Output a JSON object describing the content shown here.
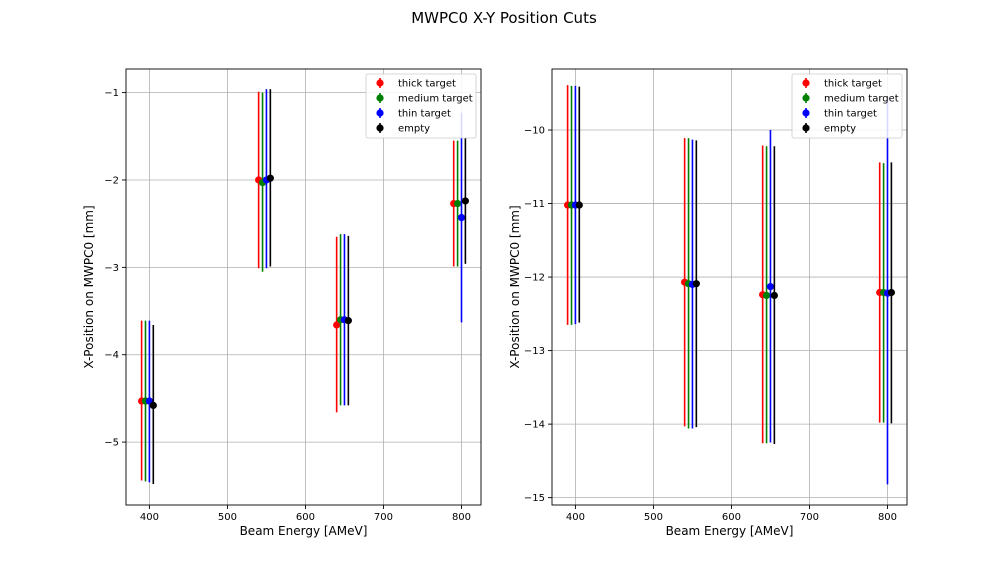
{
  "title": "MWPC0 X-Y Position Cuts",
  "legend_entries": [
    {
      "name": "thick target",
      "color": "#ff0000"
    },
    {
      "name": "medium target",
      "color": "#008000"
    },
    {
      "name": "thin target",
      "color": "#0000ff"
    },
    {
      "name": "empty",
      "color": "#000000"
    }
  ],
  "chart_data": [
    {
      "type": "scatter",
      "errorbars": true,
      "title": "",
      "xlabel": "Beam Energy [AMeV]",
      "ylabel": "X-Position on MWPC0 [mm]",
      "xlim": [
        370,
        825
      ],
      "ylim": [
        -5.72,
        -0.73
      ],
      "xticks": [
        400,
        500,
        600,
        700,
        800
      ],
      "yticks": [
        -5,
        -4,
        -3,
        -2,
        -1
      ],
      "ytick_labels": [
        "−5",
        "−4",
        "−3",
        "−2",
        "−1"
      ],
      "grid": true,
      "legend_position": "top-right",
      "series": [
        {
          "name": "thick target",
          "color": "#ff0000",
          "points": [
            {
              "x": 390,
              "y": -4.53,
              "lo": -5.44,
              "hi": -3.61
            },
            {
              "x": 540,
              "y": -2.0,
              "lo": -3.01,
              "hi": -0.99
            },
            {
              "x": 640,
              "y": -3.66,
              "lo": -4.66,
              "hi": -2.65
            },
            {
              "x": 790,
              "y": -2.27,
              "lo": -2.99,
              "hi": -1.55
            }
          ]
        },
        {
          "name": "medium target",
          "color": "#008000",
          "points": [
            {
              "x": 395,
              "y": -4.53,
              "lo": -5.45,
              "hi": -3.61
            },
            {
              "x": 545,
              "y": -2.03,
              "lo": -3.05,
              "hi": -1.0
            },
            {
              "x": 645,
              "y": -3.6,
              "lo": -4.58,
              "hi": -2.62
            },
            {
              "x": 795,
              "y": -2.27,
              "lo": -2.99,
              "hi": -1.55
            }
          ]
        },
        {
          "name": "thin target",
          "color": "#0000ff",
          "points": [
            {
              "x": 400,
              "y": -4.53,
              "lo": -5.46,
              "hi": -3.61
            },
            {
              "x": 550,
              "y": -2.0,
              "lo": -3.01,
              "hi": -0.96
            },
            {
              "x": 650,
              "y": -3.6,
              "lo": -4.58,
              "hi": -2.62
            },
            {
              "x": 800,
              "y": -2.43,
              "lo": -3.63,
              "hi": -1.23
            }
          ]
        },
        {
          "name": "empty",
          "color": "#000000",
          "points": [
            {
              "x": 405,
              "y": -4.58,
              "lo": -5.48,
              "hi": -3.66
            },
            {
              "x": 555,
              "y": -1.98,
              "lo": -2.99,
              "hi": -0.96
            },
            {
              "x": 655,
              "y": -3.61,
              "lo": -4.58,
              "hi": -2.64
            },
            {
              "x": 805,
              "y": -2.24,
              "lo": -2.96,
              "hi": -1.52
            }
          ]
        }
      ]
    },
    {
      "type": "scatter",
      "errorbars": true,
      "title": "",
      "xlabel": "Beam Energy [AMeV]",
      "ylabel": "X-Position on MWPC0 [mm]",
      "xlim": [
        370,
        825
      ],
      "ylim": [
        -15.1,
        -9.17
      ],
      "xticks": [
        400,
        500,
        600,
        700,
        800
      ],
      "yticks": [
        -15,
        -14,
        -13,
        -12,
        -11,
        -10
      ],
      "ytick_labels": [
        "−15",
        "−14",
        "−13",
        "−12",
        "−11",
        "−10"
      ],
      "grid": true,
      "legend_position": "top-right",
      "series": [
        {
          "name": "thick target",
          "color": "#ff0000",
          "points": [
            {
              "x": 390,
              "y": -11.02,
              "lo": -12.65,
              "hi": -9.39
            },
            {
              "x": 540,
              "y": -12.07,
              "lo": -14.03,
              "hi": -10.11
            },
            {
              "x": 640,
              "y": -12.24,
              "lo": -14.26,
              "hi": -10.21
            },
            {
              "x": 790,
              "y": -12.21,
              "lo": -13.98,
              "hi": -10.44
            }
          ]
        },
        {
          "name": "medium target",
          "color": "#008000",
          "points": [
            {
              "x": 395,
              "y": -11.02,
              "lo": -12.65,
              "hi": -9.4
            },
            {
              "x": 545,
              "y": -12.09,
              "lo": -14.06,
              "hi": -10.11
            },
            {
              "x": 645,
              "y": -12.25,
              "lo": -14.26,
              "hi": -10.22
            },
            {
              "x": 795,
              "y": -12.21,
              "lo": -13.98,
              "hi": -10.45
            }
          ]
        },
        {
          "name": "thin target",
          "color": "#0000ff",
          "points": [
            {
              "x": 400,
              "y": -11.02,
              "lo": -12.64,
              "hi": -9.4
            },
            {
              "x": 550,
              "y": -12.1,
              "lo": -14.06,
              "hi": -10.13
            },
            {
              "x": 650,
              "y": -12.13,
              "lo": -14.25,
              "hi": -10.0
            },
            {
              "x": 800,
              "y": -12.22,
              "lo": -14.82,
              "hi": -9.55
            }
          ]
        },
        {
          "name": "empty",
          "color": "#000000",
          "points": [
            {
              "x": 405,
              "y": -11.02,
              "lo": -12.62,
              "hi": -9.41
            },
            {
              "x": 555,
              "y": -12.09,
              "lo": -14.04,
              "hi": -10.14
            },
            {
              "x": 655,
              "y": -12.25,
              "lo": -14.27,
              "hi": -10.22
            },
            {
              "x": 805,
              "y": -12.21,
              "lo": -13.99,
              "hi": -10.44
            }
          ]
        }
      ]
    }
  ]
}
